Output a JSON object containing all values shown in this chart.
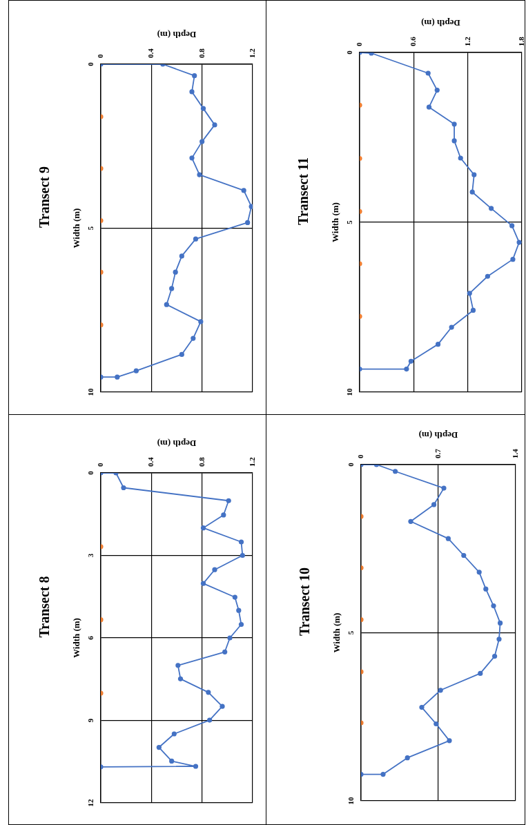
{
  "chart_data": [
    {
      "type": "line",
      "title": "Transect 9",
      "xlabel": "Depth (m)",
      "ylabel": "Width (m)",
      "orientation": "horizontal",
      "xlim": [
        0,
        1.2
      ],
      "xticks": [
        0,
        0.4,
        0.8,
        1.2
      ],
      "ylim": [
        10,
        0
      ],
      "yticks": [
        0,
        5,
        10
      ],
      "grid": true,
      "marker": "circle",
      "series": [
        {
          "color": "#4472c4",
          "x": [
            0,
            0,
            0.35,
            0.84,
            1.35,
            1.85,
            2.36,
            2.86,
            3.37,
            3.85,
            4.34,
            4.83,
            5.33,
            5.85,
            6.34,
            6.84,
            7.33,
            7.85,
            8.36,
            8.85,
            9.35,
            9.54,
            9.54
          ],
          "values": [
            0,
            0.49,
            0.74,
            0.72,
            0.81,
            0.9,
            0.8,
            0.72,
            0.78,
            1.13,
            1.19,
            1.16,
            0.75,
            0.64,
            0.59,
            0.56,
            0.52,
            0.79,
            0.73,
            0.64,
            0.28,
            0.13,
            0
          ]
        },
        {
          "type": "scatter",
          "color": "#ed7d31",
          "x": [
            1.6,
            3.18,
            4.77,
            6.34,
            7.95
          ],
          "values": [
            0,
            0,
            0,
            0,
            0
          ]
        }
      ]
    },
    {
      "type": "line",
      "title": "Transect 11",
      "xlabel": "Depth (m)",
      "ylabel": "Width (m)",
      "orientation": "horizontal",
      "xlim": [
        0,
        1.8
      ],
      "xticks": [
        0,
        0.6,
        1.2,
        1.8
      ],
      "ylim": [
        10,
        0
      ],
      "yticks": [
        0,
        5,
        10
      ],
      "grid": true,
      "marker": "circle",
      "series": [
        {
          "color": "#4472c4",
          "x": [
            0,
            0.02,
            0.61,
            1.11,
            1.61,
            2.11,
            2.6,
            3.11,
            3.6,
            4.11,
            4.59,
            5.1,
            5.59,
            6.09,
            6.59,
            7.09,
            7.59,
            8.09,
            8.59,
            9.09,
            9.32,
            9.32
          ],
          "values": [
            0,
            0.13,
            0.76,
            0.86,
            0.77,
            1.05,
            1.05,
            1.12,
            1.27,
            1.25,
            1.46,
            1.69,
            1.77,
            1.7,
            1.42,
            1.22,
            1.26,
            1.02,
            0.87,
            0.57,
            0.52,
            0
          ]
        },
        {
          "type": "scatter",
          "color": "#ed7d31",
          "x": [
            1.55,
            3.12,
            4.68,
            6.22,
            7.77
          ],
          "values": [
            0,
            0,
            0,
            0,
            0
          ]
        }
      ]
    },
    {
      "type": "line",
      "title": "Transect 8",
      "xlabel": "Depth (m)",
      "ylabel": "Width (m)",
      "orientation": "horizontal",
      "xlim": [
        0,
        1.2
      ],
      "xticks": [
        0,
        0.4,
        0.8,
        1.2
      ],
      "ylim": [
        12,
        0
      ],
      "yticks": [
        0,
        3,
        6,
        9,
        12
      ],
      "grid": true,
      "marker": "circle",
      "series": [
        {
          "color": "#4472c4",
          "x": [
            0,
            0,
            0.54,
            1.01,
            1.53,
            2.0,
            2.51,
            3.0,
            3.52,
            4.02,
            4.52,
            5.0,
            5.51,
            6.0,
            6.51,
            7.0,
            7.49,
            7.98,
            8.49,
            8.99,
            9.49,
            9.98,
            10.48,
            10.67,
            10.69
          ],
          "values": [
            0,
            0.12,
            0.18,
            1.01,
            0.97,
            0.81,
            1.11,
            1.12,
            0.9,
            0.81,
            1.06,
            1.09,
            1.11,
            1.02,
            0.98,
            0.61,
            0.63,
            0.85,
            0.96,
            0.86,
            0.58,
            0.46,
            0.56,
            0.75,
            0
          ]
        },
        {
          "type": "scatter",
          "color": "#ed7d31",
          "x": [
            2.68,
            5.34,
            8.01
          ],
          "values": [
            0,
            0,
            0
          ]
        }
      ]
    },
    {
      "type": "line",
      "title": "Transect 10",
      "xlabel": "Depth (m)",
      "ylabel": "Width (m)",
      "orientation": "horizontal",
      "xlim": [
        0,
        1.4
      ],
      "xticks": [
        0,
        0.7,
        1.4
      ],
      "ylim": [
        10,
        0
      ],
      "yticks": [
        0,
        5,
        10
      ],
      "grid": true,
      "marker": "circle",
      "series": [
        {
          "color": "#4472c4",
          "x": [
            0,
            0,
            0.2,
            0.7,
            1.19,
            1.69,
            2.2,
            2.7,
            3.2,
            3.7,
            4.2,
            4.71,
            5.19,
            5.7,
            6.21,
            6.71,
            7.22,
            7.71,
            8.21,
            8.72,
            9.21,
            9.21
          ],
          "values": [
            0,
            0.14,
            0.31,
            0.75,
            0.66,
            0.45,
            0.79,
            0.93,
            1.07,
            1.13,
            1.2,
            1.26,
            1.25,
            1.21,
            1.08,
            0.72,
            0.55,
            0.68,
            0.8,
            0.42,
            0.2,
            0
          ]
        },
        {
          "type": "scatter",
          "color": "#ed7d31",
          "x": [
            1.54,
            3.07,
            4.61,
            6.16,
            7.68
          ],
          "values": [
            0,
            0,
            0,
            0,
            0
          ]
        }
      ]
    }
  ]
}
